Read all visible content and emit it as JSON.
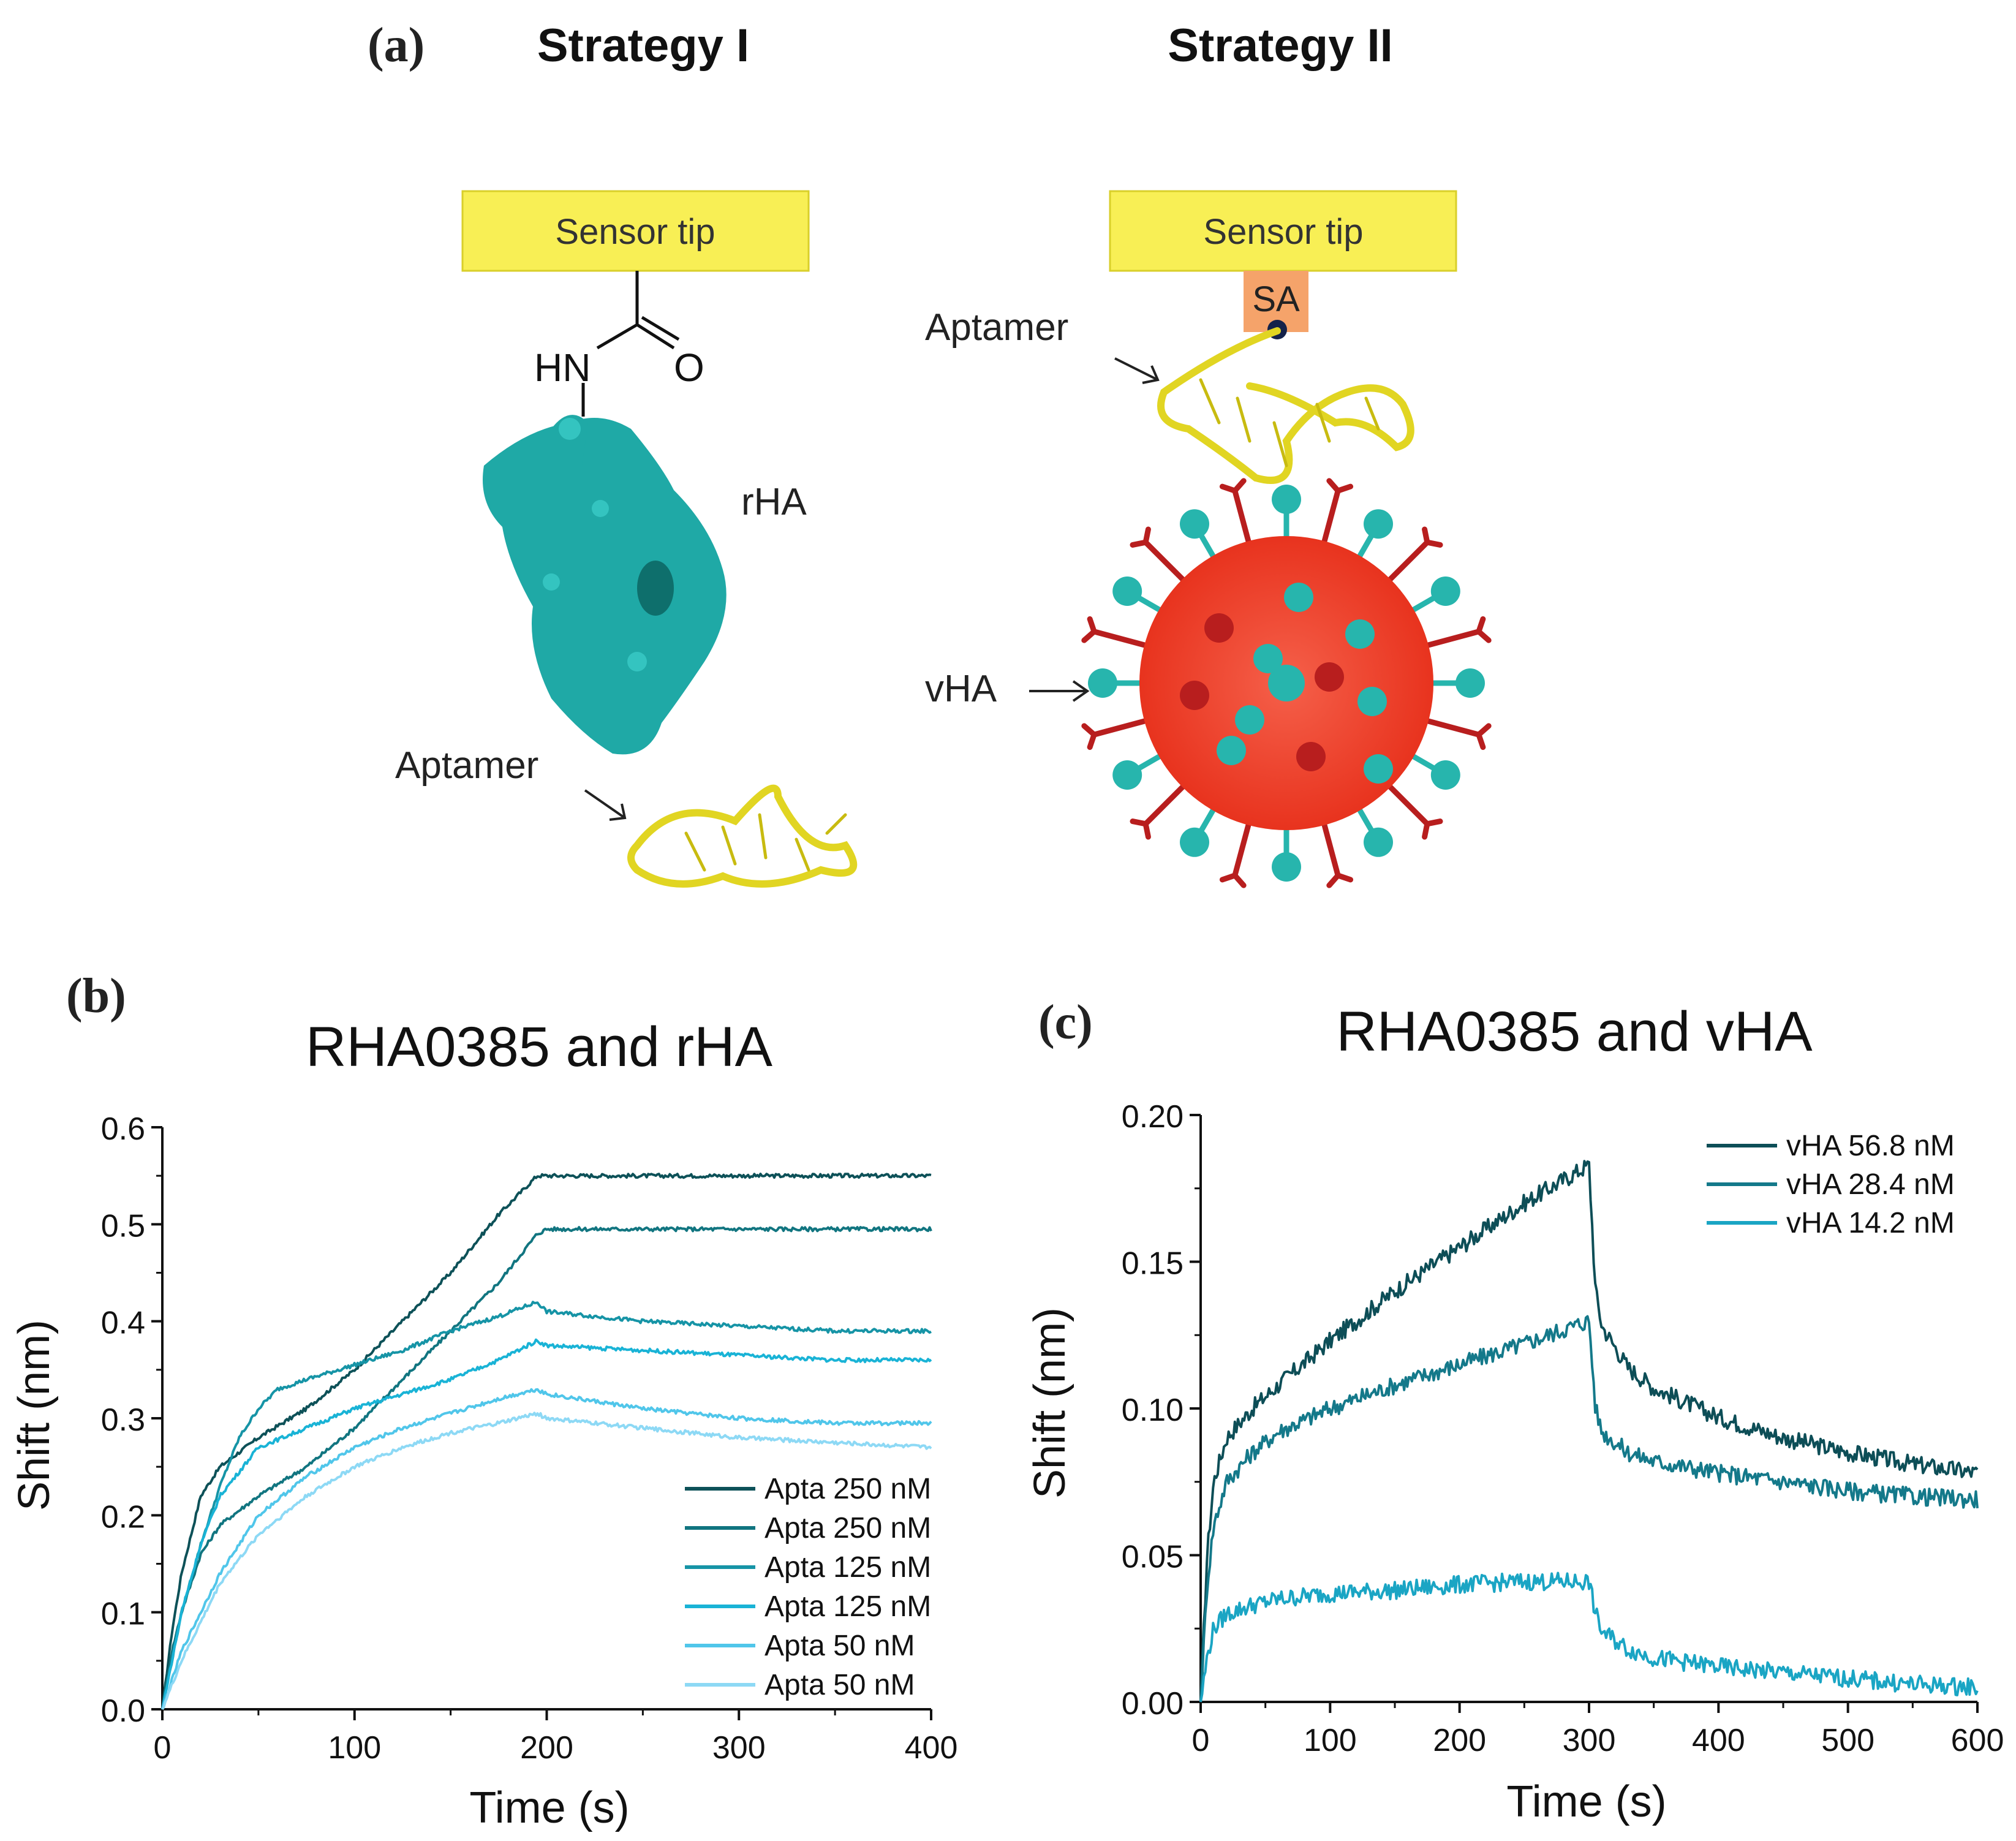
{
  "panel_a": {
    "label": "(a)",
    "strategy1": {
      "title": "Strategy I",
      "sensor_tip": "Sensor tip",
      "linker_nh": "HN",
      "linker_o": "O",
      "protein_label": "rHA",
      "aptamer_label": "Aptamer"
    },
    "strategy2": {
      "title": "Strategy II",
      "sensor_tip": "Sensor tip",
      "sa_label": "SA",
      "aptamer_label": "Aptamer",
      "virus_label": "vHA"
    },
    "colors": {
      "sensor_tip": "#f8ef55",
      "sa_box": "#f5a36a",
      "protein": "#1fa9a6",
      "aptamer": "#e1d522",
      "virus": "#ee3a24",
      "spike_red": "#b81e1e",
      "spike_teal": "#27b5ad"
    }
  },
  "chart_data": [
    {
      "panel_label": "(b)",
      "type": "line",
      "title": "RHA0385 and rHA",
      "xlabel": "Time (s)",
      "ylabel": "Shift (nm)",
      "xlim": [
        0,
        400
      ],
      "ylim": [
        0,
        0.6
      ],
      "xticks": [
        0,
        100,
        200,
        300,
        400
      ],
      "xtick_labels": [
        "0",
        "100",
        "200",
        "300",
        "400"
      ],
      "yticks": [
        0.0,
        0.1,
        0.2,
        0.3,
        0.4,
        0.5,
        0.6
      ],
      "ytick_labels": [
        "0.0",
        "0.1",
        "0.2",
        "0.3",
        "0.4",
        "0.5",
        "0.6"
      ],
      "legend_position": "lower-right",
      "series": [
        {
          "name": "Apta 250 nM",
          "color": "#0d5158",
          "x": [
            0,
            5,
            10,
            20,
            30,
            50,
            75,
            100,
            125,
            150,
            175,
            195,
            200,
            250,
            300,
            350,
            400
          ],
          "values": [
            0,
            0.08,
            0.14,
            0.22,
            0.25,
            0.28,
            0.31,
            0.35,
            0.4,
            0.45,
            0.51,
            0.55,
            0.55,
            0.55,
            0.55,
            0.55,
            0.55
          ]
        },
        {
          "name": "Apta 250 nM",
          "color": "#117580",
          "x": [
            0,
            5,
            10,
            20,
            30,
            50,
            75,
            100,
            125,
            150,
            175,
            195,
            200,
            250,
            300,
            350,
            400
          ],
          "values": [
            0,
            0.06,
            0.1,
            0.16,
            0.19,
            0.22,
            0.25,
            0.29,
            0.34,
            0.39,
            0.44,
            0.49,
            0.495,
            0.495,
            0.495,
            0.495,
            0.495
          ]
        },
        {
          "name": "Apta 125 nM",
          "color": "#1694a6",
          "x": [
            0,
            5,
            10,
            20,
            30,
            40,
            50,
            60,
            75,
            100,
            125,
            150,
            175,
            195,
            200,
            225,
            250,
            300,
            350,
            400
          ],
          "values": [
            0,
            0.05,
            0.1,
            0.17,
            0.23,
            0.28,
            0.31,
            0.33,
            0.34,
            0.355,
            0.37,
            0.39,
            0.405,
            0.42,
            0.41,
            0.405,
            0.4,
            0.395,
            0.39,
            0.39
          ]
        },
        {
          "name": "Apta 125 nM",
          "color": "#19b3d6",
          "x": [
            0,
            5,
            10,
            20,
            30,
            50,
            75,
            100,
            125,
            150,
            175,
            195,
            200,
            250,
            300,
            350,
            400
          ],
          "values": [
            0,
            0.05,
            0.1,
            0.17,
            0.22,
            0.27,
            0.29,
            0.31,
            0.325,
            0.34,
            0.36,
            0.38,
            0.375,
            0.37,
            0.365,
            0.36,
            0.36
          ]
        },
        {
          "name": "Apta 50 nM",
          "color": "#50c6ea",
          "x": [
            0,
            5,
            10,
            20,
            30,
            50,
            75,
            100,
            125,
            150,
            175,
            195,
            200,
            250,
            300,
            350,
            400
          ],
          "values": [
            0,
            0.03,
            0.06,
            0.1,
            0.14,
            0.2,
            0.24,
            0.27,
            0.29,
            0.305,
            0.32,
            0.33,
            0.325,
            0.31,
            0.3,
            0.295,
            0.295
          ]
        },
        {
          "name": "Apta 50 nM",
          "color": "#8dd9f5",
          "x": [
            0,
            5,
            10,
            20,
            30,
            50,
            75,
            100,
            125,
            150,
            175,
            195,
            200,
            250,
            300,
            350,
            400
          ],
          "values": [
            0,
            0.025,
            0.05,
            0.09,
            0.13,
            0.18,
            0.22,
            0.25,
            0.27,
            0.285,
            0.295,
            0.305,
            0.3,
            0.29,
            0.28,
            0.275,
            0.27
          ]
        }
      ]
    },
    {
      "panel_label": "(c)",
      "type": "line",
      "title": "RHA0385 and vHA",
      "xlabel": "Time (s)",
      "ylabel": "Shift (nm)",
      "xlim": [
        0,
        600
      ],
      "ylim": [
        0,
        0.2
      ],
      "xticks": [
        0,
        100,
        200,
        300,
        400,
        500,
        600
      ],
      "xtick_labels": [
        "0",
        "100",
        "200",
        "300",
        "400",
        "500",
        "600"
      ],
      "yticks": [
        0.0,
        0.05,
        0.1,
        0.15,
        0.2
      ],
      "ytick_labels": [
        "0.00",
        "0.05",
        "0.10",
        "0.15",
        "0.20"
      ],
      "legend_position": "top-right",
      "series": [
        {
          "name": "vHA 56.8 nM",
          "color": "#0d4e57",
          "x": [
            0,
            5,
            10,
            20,
            40,
            60,
            100,
            150,
            200,
            250,
            300,
            305,
            310,
            330,
            350,
            400,
            450,
            500,
            550,
            600
          ],
          "values": [
            0,
            0.05,
            0.075,
            0.09,
            0.1,
            0.108,
            0.123,
            0.14,
            0.155,
            0.17,
            0.183,
            0.14,
            0.128,
            0.114,
            0.107,
            0.097,
            0.09,
            0.085,
            0.081,
            0.078
          ]
        },
        {
          "name": "vHA 28.4 nM",
          "color": "#14798a",
          "x": [
            0,
            5,
            10,
            20,
            40,
            60,
            100,
            150,
            200,
            250,
            300,
            305,
            310,
            330,
            350,
            400,
            450,
            500,
            550,
            600
          ],
          "values": [
            0,
            0.04,
            0.06,
            0.075,
            0.085,
            0.092,
            0.1,
            0.108,
            0.115,
            0.122,
            0.13,
            0.1,
            0.092,
            0.085,
            0.082,
            0.078,
            0.075,
            0.072,
            0.07,
            0.069
          ]
        },
        {
          "name": "vHA 14.2 nM",
          "color": "#1aa5c4",
          "x": [
            0,
            5,
            10,
            20,
            40,
            60,
            100,
            150,
            200,
            250,
            300,
            305,
            310,
            330,
            350,
            400,
            450,
            500,
            550,
            600
          ],
          "values": [
            0,
            0.015,
            0.025,
            0.03,
            0.033,
            0.035,
            0.037,
            0.038,
            0.04,
            0.041,
            0.041,
            0.03,
            0.024,
            0.018,
            0.015,
            0.012,
            0.01,
            0.008,
            0.006,
            0.005
          ]
        }
      ]
    }
  ]
}
